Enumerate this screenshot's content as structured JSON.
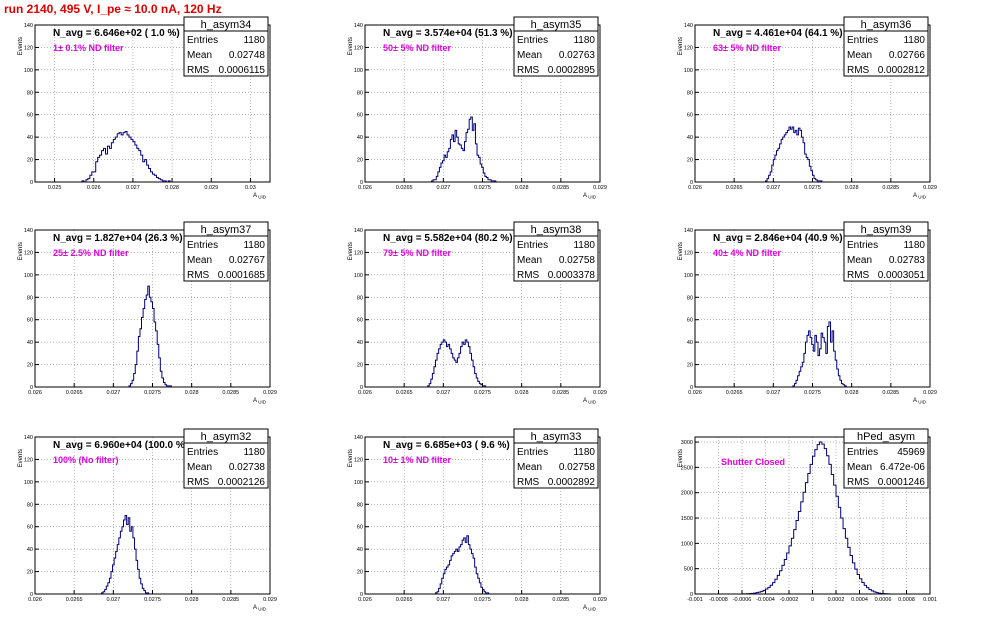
{
  "run_title": "run 2140,   495 V, I_pe ≈ 10.0 nA, 120 Hz",
  "chart_data": [
    {
      "type": "histogram",
      "stats_title": "h_asym34",
      "navg": "N_avg = 6.646e+02 ( 1.0 %)",
      "filter": "1± 0.1% ND filter",
      "entries": "1180",
      "mean": "0.02748",
      "rms": "0.0006115",
      "ylabel": "Events",
      "xlabel": "A_UID",
      "xlim": [
        0.0245,
        0.0305
      ],
      "ylim": [
        0,
        140
      ],
      "xticks": [
        {
          "v": 0.025,
          "t": "0.025"
        },
        {
          "v": 0.026,
          "t": "0.026"
        },
        {
          "v": 0.027,
          "t": "0.027"
        },
        {
          "v": 0.028,
          "t": "0.028"
        },
        {
          "v": 0.029,
          "t": "0.029"
        },
        {
          "v": 0.03,
          "t": "0.03"
        }
      ],
      "yticks": [
        {
          "v": 0,
          "t": "0"
        },
        {
          "v": 20,
          "t": "20"
        },
        {
          "v": 40,
          "t": "40"
        },
        {
          "v": 60,
          "t": "60"
        },
        {
          "v": 80,
          "t": "80"
        },
        {
          "v": 100,
          "t": "100"
        },
        {
          "v": 120,
          "t": "120"
        },
        {
          "v": 140,
          "t": "140"
        }
      ],
      "bins": {
        "start": 0.0257,
        "width": 5e-05,
        "counts": [
          1,
          0,
          2,
          3,
          6,
          9,
          9,
          18,
          22,
          24,
          28,
          30,
          25,
          32,
          30,
          35,
          38,
          40,
          43,
          44,
          42,
          44,
          45,
          42,
          40,
          38,
          36,
          33,
          30,
          28,
          24,
          18,
          20,
          15,
          12,
          9,
          7,
          6,
          4,
          3,
          2,
          1,
          1,
          0,
          1
        ]
      }
    },
    {
      "type": "histogram",
      "stats_title": "h_asym35",
      "navg": "N_avg = 3.574e+04 (51.3 %)",
      "filter": "50± 5% ND filter",
      "entries": "1180",
      "mean": "0.02763",
      "rms": "0.0002895",
      "ylabel": "Events",
      "xlabel": "A_UID",
      "xlim": [
        0.026,
        0.029
      ],
      "ylim": [
        0,
        140
      ],
      "xticks": [
        {
          "v": 0.026,
          "t": "0.026"
        },
        {
          "v": 0.0265,
          "t": "0.0265"
        },
        {
          "v": 0.027,
          "t": "0.027"
        },
        {
          "v": 0.0275,
          "t": "0.0275"
        },
        {
          "v": 0.028,
          "t": "0.028"
        },
        {
          "v": 0.0285,
          "t": "0.0285"
        },
        {
          "v": 0.029,
          "t": "0.029"
        }
      ],
      "yticks": [
        {
          "v": 0,
          "t": "0"
        },
        {
          "v": 20,
          "t": "20"
        },
        {
          "v": 40,
          "t": "40"
        },
        {
          "v": 60,
          "t": "60"
        },
        {
          "v": 80,
          "t": "80"
        },
        {
          "v": 100,
          "t": "100"
        },
        {
          "v": 120,
          "t": "120"
        },
        {
          "v": 140,
          "t": "140"
        }
      ],
      "bins": {
        "start": 0.02685,
        "width": 2e-05,
        "counts": [
          1,
          2,
          2,
          5,
          9,
          13,
          17,
          19,
          24,
          22,
          27,
          30,
          38,
          42,
          36,
          46,
          40,
          34,
          33,
          30,
          28,
          36,
          44,
          47,
          56,
          58,
          46,
          52,
          34,
          24,
          22,
          16,
          13,
          8,
          5,
          4,
          2,
          2,
          1,
          1,
          1
        ]
      }
    },
    {
      "type": "histogram",
      "stats_title": "h_asym36",
      "navg": "N_avg = 4.461e+04 (64.1 %)",
      "filter": "63± 5% ND filter",
      "entries": "1180",
      "mean": "0.02766",
      "rms": "0.0002812",
      "ylabel": "Events",
      "xlabel": "A_UID",
      "xlim": [
        0.026,
        0.029
      ],
      "ylim": [
        0,
        140
      ],
      "xticks": [
        {
          "v": 0.026,
          "t": "0.026"
        },
        {
          "v": 0.0265,
          "t": "0.0265"
        },
        {
          "v": 0.027,
          "t": "0.027"
        },
        {
          "v": 0.0275,
          "t": "0.0275"
        },
        {
          "v": 0.028,
          "t": "0.028"
        },
        {
          "v": 0.0285,
          "t": "0.0285"
        },
        {
          "v": 0.029,
          "t": "0.029"
        }
      ],
      "yticks": [
        {
          "v": 0,
          "t": "0"
        },
        {
          "v": 20,
          "t": "20"
        },
        {
          "v": 40,
          "t": "40"
        },
        {
          "v": 60,
          "t": "60"
        },
        {
          "v": 80,
          "t": "80"
        },
        {
          "v": 100,
          "t": "100"
        },
        {
          "v": 120,
          "t": "120"
        },
        {
          "v": 140,
          "t": "140"
        }
      ],
      "bins": {
        "start": 0.0269,
        "width": 2e-05,
        "counts": [
          1,
          3,
          6,
          9,
          15,
          20,
          24,
          28,
          30,
          34,
          38,
          40,
          42,
          44,
          46,
          49,
          47,
          49,
          44,
          46,
          42,
          48,
          46,
          40,
          35,
          25,
          22,
          20,
          14,
          10,
          6,
          3,
          2,
          1,
          1,
          1
        ]
      }
    },
    {
      "type": "histogram",
      "stats_title": "h_asym37",
      "navg": "N_avg = 1.827e+04 (26.3 %)",
      "filter": "25± 2.5% ND filter",
      "entries": "1180",
      "mean": "0.02767",
      "rms": "0.0001685",
      "ylabel": "Events",
      "xlabel": "A_UID",
      "xlim": [
        0.026,
        0.029
      ],
      "ylim": [
        0,
        140
      ],
      "xticks": [
        {
          "v": 0.026,
          "t": "0.026"
        },
        {
          "v": 0.0265,
          "t": "0.0265"
        },
        {
          "v": 0.027,
          "t": "0.027"
        },
        {
          "v": 0.0275,
          "t": "0.0275"
        },
        {
          "v": 0.028,
          "t": "0.028"
        },
        {
          "v": 0.0285,
          "t": "0.0285"
        },
        {
          "v": 0.029,
          "t": "0.029"
        }
      ],
      "yticks": [
        {
          "v": 0,
          "t": "0"
        },
        {
          "v": 20,
          "t": "20"
        },
        {
          "v": 40,
          "t": "40"
        },
        {
          "v": 60,
          "t": "60"
        },
        {
          "v": 80,
          "t": "80"
        },
        {
          "v": 100,
          "t": "100"
        },
        {
          "v": 120,
          "t": "120"
        },
        {
          "v": 140,
          "t": "140"
        }
      ],
      "bins": {
        "start": 0.0272,
        "width": 2e-05,
        "counts": [
          1,
          3,
          6,
          12,
          20,
          32,
          45,
          52,
          62,
          70,
          78,
          82,
          90,
          80,
          76,
          70,
          58,
          50,
          38,
          26,
          14,
          8,
          4,
          2,
          1,
          1,
          1
        ]
      }
    },
    {
      "type": "histogram",
      "stats_title": "h_asym38",
      "navg": "N_avg = 5.582e+04 (80.2 %)",
      "filter": "79± 5% ND filter",
      "entries": "1180",
      "mean": "0.02758",
      "rms": "0.0003378",
      "ylabel": "Events",
      "xlabel": "A_UID",
      "xlim": [
        0.026,
        0.029
      ],
      "ylim": [
        0,
        140
      ],
      "xticks": [
        {
          "v": 0.026,
          "t": "0.026"
        },
        {
          "v": 0.0265,
          "t": "0.0265"
        },
        {
          "v": 0.027,
          "t": "0.027"
        },
        {
          "v": 0.0275,
          "t": "0.0275"
        },
        {
          "v": 0.028,
          "t": "0.028"
        },
        {
          "v": 0.0285,
          "t": "0.0285"
        },
        {
          "v": 0.029,
          "t": "0.029"
        }
      ],
      "yticks": [
        {
          "v": 0,
          "t": "0"
        },
        {
          "v": 20,
          "t": "20"
        },
        {
          "v": 40,
          "t": "40"
        },
        {
          "v": 60,
          "t": "60"
        },
        {
          "v": 80,
          "t": "80"
        },
        {
          "v": 100,
          "t": "100"
        },
        {
          "v": 120,
          "t": "120"
        },
        {
          "v": 140,
          "t": "140"
        }
      ],
      "bins": {
        "start": 0.0268,
        "width": 2e-05,
        "counts": [
          1,
          3,
          7,
          12,
          18,
          24,
          30,
          34,
          38,
          40,
          42,
          40,
          36,
          38,
          34,
          30,
          26,
          24,
          22,
          26,
          30,
          36,
          40,
          38,
          42,
          40,
          36,
          30,
          24,
          18,
          12,
          8,
          5,
          3,
          2,
          1,
          1
        ]
      }
    },
    {
      "type": "histogram",
      "stats_title": "h_asym39",
      "navg": "N_avg = 2.846e+04 (40.9 %)",
      "filter": "40± 4% ND filter",
      "entries": "1180",
      "mean": "0.02783",
      "rms": "0.0003051",
      "ylabel": "Events",
      "xlabel": "A_UID",
      "xlim": [
        0.026,
        0.029
      ],
      "ylim": [
        0,
        140
      ],
      "xticks": [
        {
          "v": 0.026,
          "t": "0.026"
        },
        {
          "v": 0.0265,
          "t": "0.0265"
        },
        {
          "v": 0.027,
          "t": "0.027"
        },
        {
          "v": 0.0275,
          "t": "0.0275"
        },
        {
          "v": 0.028,
          "t": "0.028"
        },
        {
          "v": 0.0285,
          "t": "0.0285"
        },
        {
          "v": 0.029,
          "t": "0.029"
        }
      ],
      "yticks": [
        {
          "v": 0,
          "t": "0"
        },
        {
          "v": 20,
          "t": "20"
        },
        {
          "v": 40,
          "t": "40"
        },
        {
          "v": 60,
          "t": "60"
        },
        {
          "v": 80,
          "t": "80"
        },
        {
          "v": 100,
          "t": "100"
        },
        {
          "v": 120,
          "t": "120"
        },
        {
          "v": 140,
          "t": "140"
        }
      ],
      "bins": {
        "start": 0.02725,
        "width": 2e-05,
        "counts": [
          1,
          3,
          6,
          10,
          14,
          18,
          22,
          30,
          40,
          46,
          50,
          44,
          38,
          32,
          46,
          40,
          28,
          34,
          48,
          44,
          40,
          30,
          54,
          58,
          40,
          50,
          32,
          24,
          16,
          10,
          6,
          3,
          2,
          1
        ]
      }
    },
    {
      "type": "histogram",
      "stats_title": "h_asym32",
      "navg": "N_avg = 6.960e+04 (100.0 %)",
      "filter": "100% (No filter)",
      "entries": "1180",
      "mean": "0.02738",
      "rms": "0.0002126",
      "ylabel": "Events",
      "xlabel": "A_UID",
      "xlim": [
        0.026,
        0.029
      ],
      "ylim": [
        0,
        140
      ],
      "xticks": [
        {
          "v": 0.026,
          "t": "0.026"
        },
        {
          "v": 0.0265,
          "t": "0.0265"
        },
        {
          "v": 0.027,
          "t": "0.027"
        },
        {
          "v": 0.0275,
          "t": "0.0275"
        },
        {
          "v": 0.028,
          "t": "0.028"
        },
        {
          "v": 0.0285,
          "t": "0.0285"
        },
        {
          "v": 0.029,
          "t": "0.029"
        }
      ],
      "yticks": [
        {
          "v": 0,
          "t": "0"
        },
        {
          "v": 20,
          "t": "20"
        },
        {
          "v": 40,
          "t": "40"
        },
        {
          "v": 60,
          "t": "60"
        },
        {
          "v": 80,
          "t": "80"
        },
        {
          "v": 100,
          "t": "100"
        },
        {
          "v": 120,
          "t": "120"
        },
        {
          "v": 140,
          "t": "140"
        }
      ],
      "bins": {
        "start": 0.02685,
        "width": 2e-05,
        "counts": [
          1,
          2,
          4,
          7,
          10,
          14,
          20,
          26,
          32,
          38,
          44,
          50,
          56,
          60,
          66,
          70,
          62,
          68,
          56,
          60,
          50,
          40,
          30,
          22,
          14,
          9,
          5,
          3,
          1,
          1
        ]
      }
    },
    {
      "type": "histogram",
      "stats_title": "h_asym33",
      "navg": "N_avg = 6.685e+03 ( 9.6 %)",
      "filter": "10± 1% ND filter",
      "entries": "1180",
      "mean": "0.02758",
      "rms": "0.0002892",
      "ylabel": "Events",
      "xlabel": "A_UID",
      "xlim": [
        0.026,
        0.029
      ],
      "ylim": [
        0,
        140
      ],
      "xticks": [
        {
          "v": 0.026,
          "t": "0.026"
        },
        {
          "v": 0.0265,
          "t": "0.0265"
        },
        {
          "v": 0.027,
          "t": "0.027"
        },
        {
          "v": 0.0275,
          "t": "0.0275"
        },
        {
          "v": 0.028,
          "t": "0.028"
        },
        {
          "v": 0.0285,
          "t": "0.0285"
        },
        {
          "v": 0.029,
          "t": "0.029"
        }
      ],
      "yticks": [
        {
          "v": 0,
          "t": "0"
        },
        {
          "v": 20,
          "t": "20"
        },
        {
          "v": 40,
          "t": "40"
        },
        {
          "v": 60,
          "t": "60"
        },
        {
          "v": 80,
          "t": "80"
        },
        {
          "v": 100,
          "t": "100"
        },
        {
          "v": 120,
          "t": "120"
        },
        {
          "v": 140,
          "t": "140"
        }
      ],
      "bins": {
        "start": 0.0269,
        "width": 2e-05,
        "counts": [
          1,
          2,
          5,
          9,
          14,
          18,
          22,
          24,
          26,
          30,
          34,
          36,
          38,
          40,
          38,
          42,
          44,
          48,
          50,
          46,
          52,
          44,
          40,
          36,
          32,
          24,
          18,
          14,
          10,
          6,
          4,
          2,
          1,
          1
        ]
      }
    },
    {
      "type": "histogram",
      "stats_title": "hPed_asym",
      "navg": "",
      "filter": "Shutter Closed",
      "entries": "45969",
      "mean": "6.472e-06",
      "rms": "0.0001246",
      "ylabel": "Events",
      "xlabel": "",
      "xlim": [
        -0.001,
        0.001
      ],
      "ylim": [
        0,
        3100
      ],
      "xticks": [
        {
          "v": -0.001,
          "t": "-0.001"
        },
        {
          "v": -0.0008,
          "t": "-0.0008"
        },
        {
          "v": -0.0006,
          "t": "-0.0006"
        },
        {
          "v": -0.0004,
          "t": "-0.0004"
        },
        {
          "v": -0.0002,
          "t": "-0.0002"
        },
        {
          "v": 0,
          "t": "0"
        },
        {
          "v": 0.0002,
          "t": "0.0002"
        },
        {
          "v": 0.0004,
          "t": "0.0004"
        },
        {
          "v": 0.0006,
          "t": "0.0006"
        },
        {
          "v": 0.0008,
          "t": "0.0008"
        },
        {
          "v": 0.001,
          "t": "0.001"
        }
      ],
      "yticks": [
        {
          "v": 0,
          "t": "0"
        },
        {
          "v": 500,
          "t": "500"
        },
        {
          "v": 1000,
          "t": "1000"
        },
        {
          "v": 1500,
          "t": "1500"
        },
        {
          "v": 2000,
          "t": "2000"
        },
        {
          "v": 2500,
          "t": "2500"
        },
        {
          "v": 3000,
          "t": "3000"
        }
      ],
      "bins": {
        "start": -0.0006,
        "width": 2e-05,
        "counts": [
          2,
          3,
          5,
          8,
          12,
          18,
          26,
          38,
          52,
          72,
          98,
          130,
          172,
          225,
          290,
          368,
          460,
          565,
          680,
          810,
          950,
          1100,
          1270,
          1450,
          1630,
          1820,
          2010,
          2200,
          2380,
          2560,
          2720,
          2850,
          2950,
          3000,
          2960,
          2870,
          2730,
          2560,
          2360,
          2150,
          1930,
          1710,
          1500,
          1290,
          1100,
          920,
          760,
          615,
          490,
          385,
          300,
          228,
          170,
          125,
          90,
          62,
          42,
          28,
          18,
          11,
          7,
          4,
          2,
          1
        ]
      }
    }
  ]
}
